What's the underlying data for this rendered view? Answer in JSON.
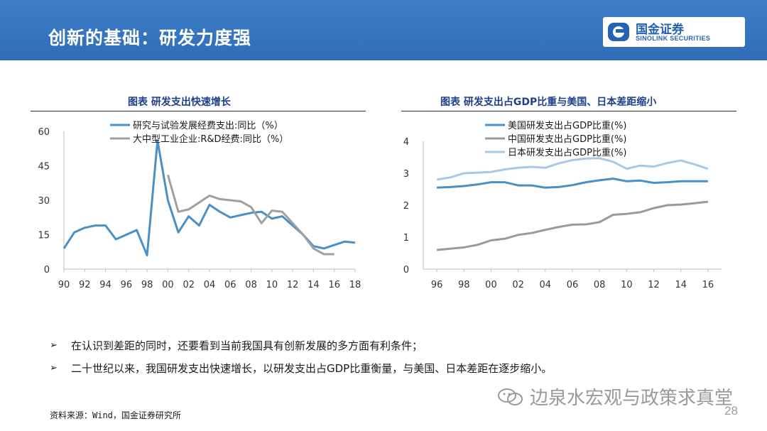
{
  "header": {
    "title": "创新的基础：研发力度强",
    "logo_cn": "国金证券",
    "logo_en": "SINOLINK SECURITIES",
    "colors": {
      "bar": "#2f6cb6",
      "logo": "#2563b0"
    }
  },
  "chart_data": [
    {
      "type": "line",
      "title": "图表  研发支出快速增长",
      "xlabel": "",
      "ylabel": "",
      "xlim": [
        1990,
        2018
      ],
      "ylim": [
        0,
        60
      ],
      "x_ticks": [
        "90",
        "92",
        "94",
        "96",
        "98",
        "00",
        "02",
        "04",
        "06",
        "08",
        "10",
        "12",
        "14",
        "16",
        "18"
      ],
      "y_ticks": [
        "0",
        "15",
        "30",
        "45",
        "60"
      ],
      "grid": false,
      "legend": "top-center",
      "series": [
        {
          "name": "研究与试验发展经费支出:同比（%）",
          "color": "#4a90c8",
          "x": [
            1990,
            1991,
            1992,
            1993,
            1994,
            1995,
            1996,
            1997,
            1998,
            1999,
            2000,
            2001,
            2002,
            2003,
            2004,
            2005,
            2006,
            2007,
            2008,
            2009,
            2010,
            2011,
            2012,
            2013,
            2014,
            2015,
            2016,
            2017,
            2018
          ],
          "values": [
            9,
            16,
            18,
            19,
            19,
            13,
            15,
            17,
            6,
            56,
            30,
            16,
            23,
            19,
            28,
            25,
            22.5,
            23.5,
            24.5,
            25,
            22,
            23,
            19,
            15,
            10,
            9,
            10.5,
            12,
            11.5
          ]
        },
        {
          "name": "大中型工业企业:R&D经费:同比（%）",
          "color": "#a0a0a0",
          "x": [
            2000,
            2001,
            2002,
            2003,
            2004,
            2005,
            2006,
            2007,
            2008,
            2009,
            2010,
            2011,
            2012,
            2013,
            2014,
            2015,
            2016
          ],
          "values": [
            41,
            25,
            26,
            29,
            32,
            30.5,
            30,
            29.5,
            27,
            20,
            25.5,
            25,
            20,
            15,
            9,
            6.5,
            6.5
          ]
        }
      ]
    },
    {
      "type": "line",
      "title": "图表  研发支出占GDP比重与美国、日本差距缩小",
      "xlabel": "",
      "ylabel": "",
      "xlim": [
        1995,
        2017
      ],
      "ylim": [
        0,
        4
      ],
      "x_ticks": [
        "96",
        "98",
        "00",
        "02",
        "04",
        "06",
        "08",
        "10",
        "12",
        "14",
        "16"
      ],
      "y_ticks": [
        "0",
        "1",
        "2",
        "3",
        "4"
      ],
      "grid": false,
      "legend": "top-center",
      "series": [
        {
          "name": "美国研发支出占GDP比重(%)",
          "color": "#4a90c8",
          "x": [
            1996,
            1997,
            1998,
            1999,
            2000,
            2001,
            2002,
            2003,
            2004,
            2005,
            2006,
            2007,
            2008,
            2009,
            2010,
            2011,
            2012,
            2013,
            2014,
            2015,
            2016
          ],
          "values": [
            2.55,
            2.57,
            2.6,
            2.65,
            2.72,
            2.72,
            2.62,
            2.62,
            2.55,
            2.57,
            2.63,
            2.72,
            2.78,
            2.83,
            2.75,
            2.77,
            2.7,
            2.72,
            2.75,
            2.75,
            2.75
          ]
        },
        {
          "name": "中国研发支出占GDP比重(%)",
          "color": "#9a9a9a",
          "x": [
            1996,
            1997,
            1998,
            1999,
            2000,
            2001,
            2002,
            2003,
            2004,
            2005,
            2006,
            2007,
            2008,
            2009,
            2010,
            2011,
            2012,
            2013,
            2014,
            2015,
            2016
          ],
          "values": [
            0.6,
            0.64,
            0.68,
            0.76,
            0.9,
            0.95,
            1.07,
            1.13,
            1.23,
            1.32,
            1.39,
            1.4,
            1.47,
            1.7,
            1.73,
            1.78,
            1.91,
            2.0,
            2.02,
            2.06,
            2.11
          ]
        },
        {
          "name": "日本研发支出占GDP比重(%)",
          "color": "#a8c8e6",
          "x": [
            1996,
            1997,
            1998,
            1999,
            2000,
            2001,
            2002,
            2003,
            2004,
            2005,
            2006,
            2007,
            2008,
            2009,
            2010,
            2011,
            2012,
            2013,
            2014,
            2015,
            2016
          ],
          "values": [
            2.8,
            2.87,
            3.0,
            3.02,
            3.04,
            3.12,
            3.17,
            3.2,
            3.17,
            3.31,
            3.41,
            3.46,
            3.47,
            3.36,
            3.14,
            3.24,
            3.21,
            3.32,
            3.4,
            3.28,
            3.14
          ]
        }
      ]
    }
  ],
  "bullets": [
    "在认识到差距的同时，还要看到当前我国具有创新发展的多方面有利条件；",
    "二十世纪以来，我国研发支出快速增长，以研发支出占GDP比重衡量，与美国、日本差距在逐步缩小。"
  ],
  "bullet_marker": "➢",
  "source": "资料来源：Wind，国金证券研究所",
  "watermark": "边泉水宏观与政策求真堂",
  "page_number": "28"
}
